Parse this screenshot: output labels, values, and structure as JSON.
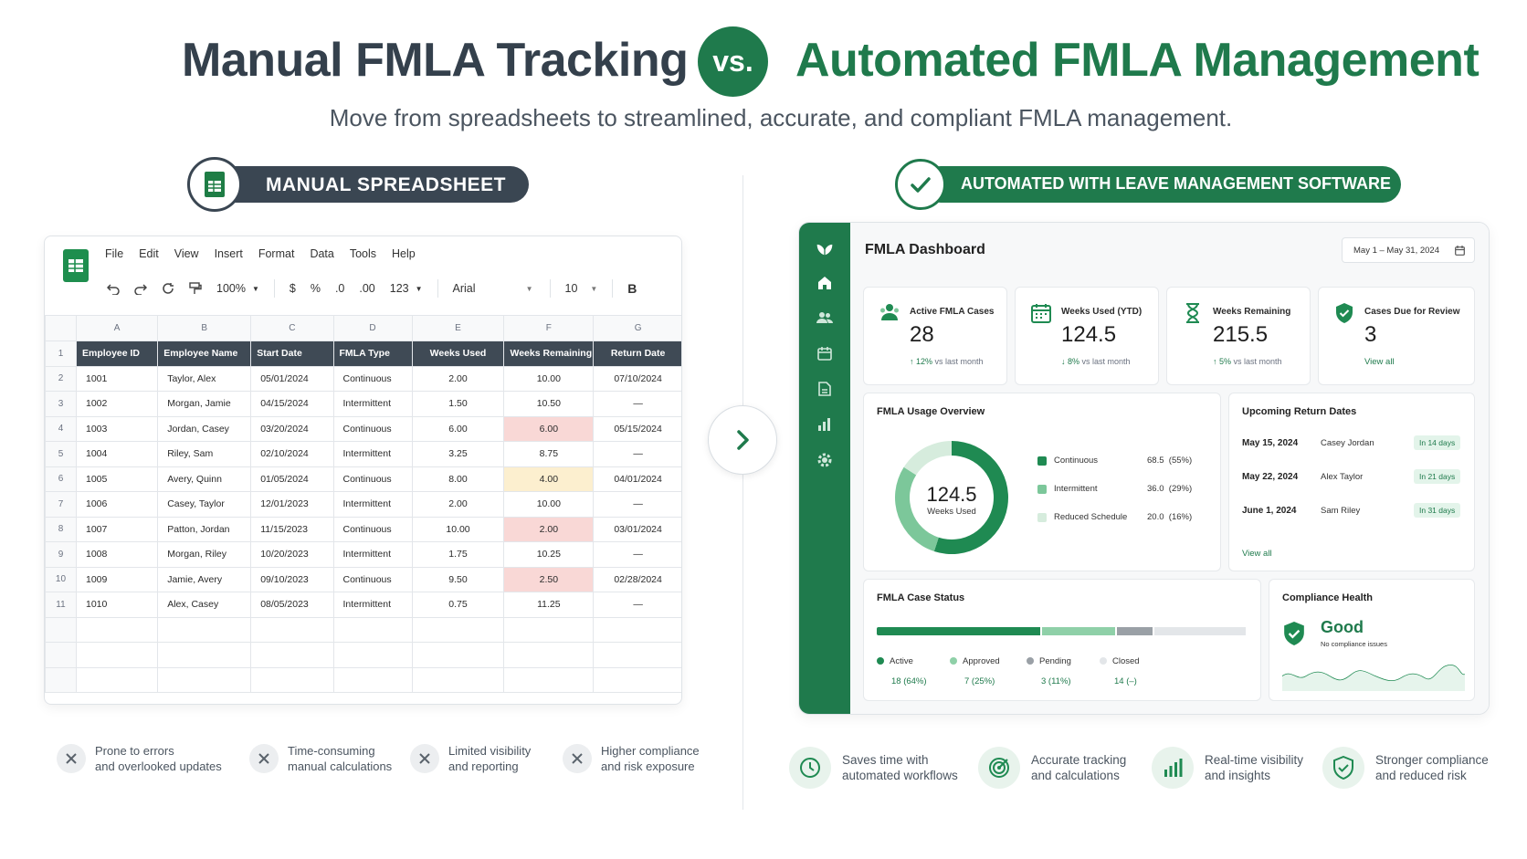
{
  "header": {
    "left_title": "Manual FMLA Tracking",
    "vs": "vs.",
    "right_title": "Automated FMLA Management",
    "subtitle": "Move from spreadsheets to streamlined, accurate, and compliant FMLA management."
  },
  "colors": {
    "brand_green": "#1f7a4c",
    "slate": "#3a4652",
    "error_red": "#f9d8d6",
    "warn_yellow": "#fcefcf"
  },
  "left_section": {
    "pill_label": "MANUAL SPREADSHEET",
    "pill_icon": "spreadsheet-icon",
    "menu": [
      "File",
      "Edit",
      "View",
      "Insert",
      "Format",
      "Data",
      "Tools",
      "Help"
    ],
    "toolbar": {
      "zoom": "100%",
      "currency": "$",
      "percent": "%",
      "dec_less": ".0",
      "dec_more": ".00",
      "format": "123",
      "font": "Arial",
      "font_size": "10",
      "bold": "B"
    },
    "columns": [
      "A",
      "B",
      "C",
      "D",
      "E",
      "F",
      "G"
    ],
    "headers": [
      "Employee ID",
      "Employee Name",
      "Start Date",
      "FMLA Type",
      "Weeks Used",
      "Weeks Remaining",
      "Return Date"
    ],
    "rows": [
      [
        "1001",
        "Taylor, Alex",
        "05/01/2024",
        "Continuous",
        "2.00",
        "10.00",
        "07/10/2024"
      ],
      [
        "1002",
        "Morgan, Jamie",
        "04/15/2024",
        "Intermittent",
        "1.50",
        "10.50",
        "—"
      ],
      [
        "1003",
        "Jordan, Casey",
        "03/20/2024",
        "Continuous",
        "6.00",
        "6.00",
        "05/15/2024"
      ],
      [
        "1004",
        "Riley, Sam",
        "02/10/2024",
        "Intermittent",
        "3.25",
        "8.75",
        "—"
      ],
      [
        "1005",
        "Avery, Quinn",
        "01/05/2024",
        "Continuous",
        "8.00",
        "4.00",
        "04/01/2024"
      ],
      [
        "1006",
        "Casey, Taylor",
        "12/01/2023",
        "Intermittent",
        "2.00",
        "10.00",
        "—"
      ],
      [
        "1007",
        "Patton, Jordan",
        "11/15/2023",
        "Continuous",
        "10.00",
        "2.00",
        "03/01/2024"
      ],
      [
        "1008",
        "Morgan, Riley",
        "10/20/2023",
        "Intermittent",
        "1.75",
        "10.25",
        "—"
      ],
      [
        "1009",
        "Jamie, Avery",
        "09/10/2023",
        "Continuous",
        "9.50",
        "2.50",
        "02/28/2024"
      ],
      [
        "1010",
        "Alex, Casey",
        "08/05/2023",
        "Intermittent",
        "0.75",
        "11.25",
        "—"
      ]
    ],
    "features": [
      {
        "line1": "Prone to errors",
        "line2": "and overlooked updates"
      },
      {
        "line1": "Time-consuming",
        "line2": "manual calculations"
      },
      {
        "line1": "Limited visibility",
        "line2": "and reporting"
      },
      {
        "line1": "Higher compliance",
        "line2": "and risk exposure"
      }
    ]
  },
  "right_section": {
    "pill_label": "AUTOMATED WITH LEAVE MANAGEMENT SOFTWARE",
    "pill_icon": "checkmark-icon",
    "dashboard": {
      "title": "FMLA Dashboard",
      "date_range": "May 1 – May 31, 2024",
      "kpis": [
        {
          "label": "Active FMLA Cases",
          "value": "28",
          "change": "12%",
          "change_suffix": "vs last month",
          "direction": "up"
        },
        {
          "label": "Weeks Used (YTD)",
          "value": "124.5",
          "change": "8%",
          "change_suffix": "vs last month",
          "direction": "down"
        },
        {
          "label": "Weeks Remaining",
          "value": "215.5",
          "change": "5%",
          "change_suffix": "vs last month",
          "direction": "up"
        },
        {
          "label": "Cases Due for Review",
          "value": "3",
          "link": "View all"
        }
      ],
      "usage": {
        "title": "FMLA Usage Overview",
        "center_value": "124.5",
        "center_label": "Weeks Used",
        "items": [
          {
            "label": "Continuous",
            "value": "68.5",
            "pct": "(55%)",
            "share": 0.55,
            "color": "#1f8a52"
          },
          {
            "label": "Intermittent",
            "value": "36.0",
            "pct": "(29%)",
            "share": 0.29,
            "color": "#7cc79a"
          },
          {
            "label": "Reduced Schedule",
            "value": "20.0",
            "pct": "(16%)",
            "share": 0.16,
            "color": "#d6ecdd"
          }
        ]
      },
      "returns": {
        "title": "Upcoming Return Dates",
        "items": [
          {
            "date": "May 15, 2024",
            "name": "Casey Jordan",
            "badge": "In 14 days"
          },
          {
            "date": "May 22, 2024",
            "name": "Alex Taylor",
            "badge": "In 21 days"
          },
          {
            "date": "June 1, 2024",
            "name": "Sam Riley",
            "badge": "In 31 days"
          }
        ],
        "link": "View all"
      },
      "status": {
        "title": "FMLA Case Status",
        "items": [
          {
            "label": "Active",
            "value": "18 (64%)",
            "share": 0.45,
            "color": "#1f8a52"
          },
          {
            "label": "Approved",
            "value": "7 (25%)",
            "share": 0.2,
            "color": "#8fd0a8"
          },
          {
            "label": "Pending",
            "value": "3 (11%)",
            "share": 0.1,
            "color": "#9aa0a6"
          },
          {
            "label": "Closed",
            "value": "14 (–)",
            "share": 0.25,
            "color": "#e3e6e9"
          }
        ]
      },
      "compliance": {
        "title": "Compliance Health",
        "status": "Good",
        "note": "No compliance issues"
      }
    },
    "features": [
      {
        "line1": "Saves time with",
        "line2": "automated workflows",
        "icon": "clock-icon"
      },
      {
        "line1": "Accurate tracking",
        "line2": "and calculations",
        "icon": "target-icon"
      },
      {
        "line1": "Real-time visibility",
        "line2": "and insights",
        "icon": "bar-chart-icon"
      },
      {
        "line1": "Stronger compliance",
        "line2": "and reduced risk",
        "icon": "shield-check-icon"
      }
    ]
  }
}
